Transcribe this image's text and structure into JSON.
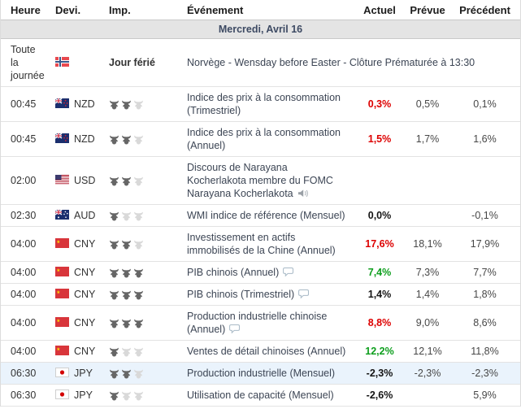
{
  "table": {
    "columns": [
      {
        "key": "time",
        "label": "Heure"
      },
      {
        "key": "currency",
        "label": "Devi."
      },
      {
        "key": "importance",
        "label": "Imp."
      },
      {
        "key": "event",
        "label": "Événement"
      },
      {
        "key": "actual",
        "label": "Actuel"
      },
      {
        "key": "forecast",
        "label": "Prévue"
      },
      {
        "key": "previous",
        "label": "Précédent"
      }
    ],
    "date_header": "Mercredi, Avril 16",
    "value_colors": {
      "red": "#dd0000",
      "green": "#0d9e1d",
      "black": "#141414"
    },
    "importance_colors": {
      "active": "#666666",
      "inactive": "#d9d9d9"
    },
    "highlight_color": "#eaf3fc",
    "rows": [
      {
        "type": "holiday",
        "time": "Toute la journée",
        "flag": "norway",
        "currency": "",
        "importance_label": "Jour férié",
        "event": "Norvège - Wensday before Easter - Clôture Prématurée à 13:30"
      },
      {
        "type": "event",
        "time": "00:45",
        "flag": "nzd",
        "currency": "NZD",
        "bulls": 2,
        "event": "Indice des prix à la consommation (Trimestriel)",
        "actual": "0,3%",
        "actual_color": "red",
        "forecast": "0,5%",
        "previous": "0,1%"
      },
      {
        "type": "event",
        "time": "00:45",
        "flag": "nzd",
        "currency": "NZD",
        "bulls": 2,
        "event": "Indice des prix à la consommation (Annuel)",
        "actual": "1,5%",
        "actual_color": "red",
        "forecast": "1,7%",
        "previous": "1,6%"
      },
      {
        "type": "event",
        "time": "02:00",
        "flag": "usd",
        "currency": "USD",
        "bulls": 2,
        "event": "Discours de Narayana Kocherlakota membre du FOMC Narayana Kocherlakota",
        "has_speaker_icon": true,
        "actual": "",
        "actual_color": "black",
        "forecast": "",
        "previous": ""
      },
      {
        "type": "event",
        "time": "02:30",
        "flag": "aud",
        "currency": "AUD",
        "bulls": 1,
        "event": "WMI indice de référence (Mensuel)",
        "actual": "0,0%",
        "actual_color": "black",
        "forecast": "",
        "previous": "-0,1%"
      },
      {
        "type": "event",
        "time": "04:00",
        "flag": "cny",
        "currency": "CNY",
        "bulls": 2,
        "event": "Investissement en actifs immobilisés de la Chine (Annuel)",
        "actual": "17,6%",
        "actual_color": "red",
        "forecast": "18,1%",
        "previous": "17,9%"
      },
      {
        "type": "event",
        "time": "04:00",
        "flag": "cny",
        "currency": "CNY",
        "bulls": 3,
        "event": "PIB chinois (Annuel)",
        "has_comment_icon": true,
        "actual": "7,4%",
        "actual_color": "green",
        "forecast": "7,3%",
        "previous": "7,7%"
      },
      {
        "type": "event",
        "time": "04:00",
        "flag": "cny",
        "currency": "CNY",
        "bulls": 3,
        "event": "PIB chinois (Trimestriel)",
        "has_comment_icon": true,
        "actual": "1,4%",
        "actual_color": "black",
        "forecast": "1,4%",
        "previous": "1,8%"
      },
      {
        "type": "event",
        "time": "04:00",
        "flag": "cny",
        "currency": "CNY",
        "bulls": 3,
        "event": "Production industrielle chinoise (Annuel)",
        "has_comment_icon": true,
        "actual": "8,8%",
        "actual_color": "red",
        "forecast": "9,0%",
        "previous": "8,6%"
      },
      {
        "type": "event",
        "time": "04:00",
        "flag": "cny",
        "currency": "CNY",
        "bulls": 1,
        "event": "Ventes de détail chinoises (Annuel)",
        "actual": "12,2%",
        "actual_color": "green",
        "forecast": "12,1%",
        "previous": "11,8%"
      },
      {
        "type": "event",
        "time": "06:30",
        "flag": "jpy",
        "currency": "JPY",
        "bulls": 2,
        "highlighted": true,
        "event": "Production industrielle (Mensuel)",
        "actual": "-2,3%",
        "actual_color": "black",
        "forecast": "-2,3%",
        "previous": "-2,3%"
      },
      {
        "type": "event",
        "time": "06:30",
        "flag": "jpy",
        "currency": "JPY",
        "bulls": 1,
        "event": "Utilisation de capacité (Mensuel)",
        "actual": "-2,6%",
        "actual_color": "black",
        "forecast": "",
        "previous": "5,9%"
      }
    ]
  }
}
